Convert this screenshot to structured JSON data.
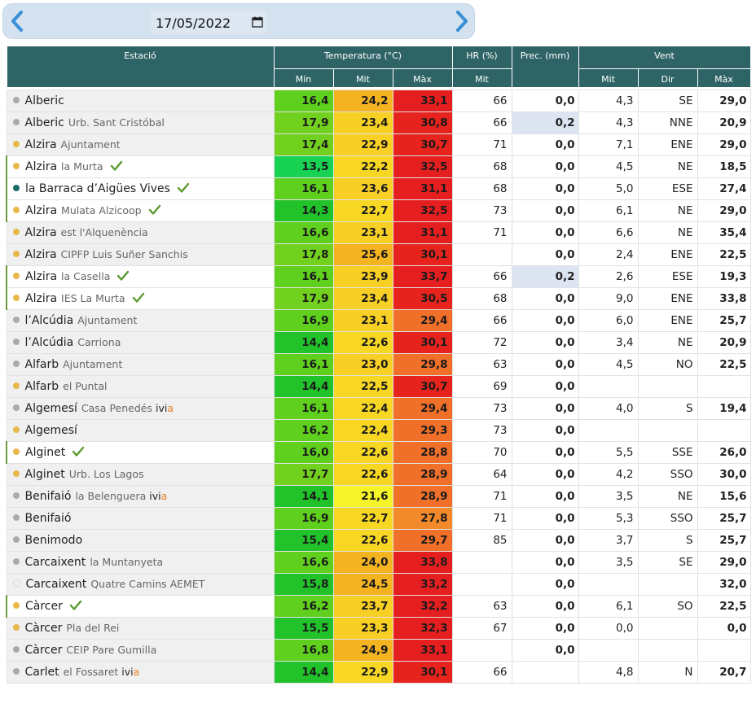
{
  "date_field": {
    "value": "17/05/2022"
  },
  "header": {
    "estacio": "Estació",
    "temperatura": "Temperatura (°C)",
    "hr": "HR (%)",
    "prec": "Prec. (mm)",
    "vent": "Vent",
    "t_min": "Mín",
    "t_mit": "Mit",
    "t_max": "Màx",
    "hr_mit": "Mit",
    "v_mit": "Mit",
    "v_dir": "Dir",
    "v_max": "Màx"
  },
  "colors": {
    "status_grey": "#aaaaaa",
    "status_yellow": "#e8b84a",
    "status_teal": "#1d6b66",
    "check_green": "#5a9a2e",
    "rain_highlight": "#dde5f3"
  },
  "rows": [
    {
      "name": "Alberic",
      "sub": "",
      "dot": "grey",
      "check": false,
      "ivia": false,
      "sel": false,
      "min": "16,4",
      "mit": "24,2",
      "max": "33,1",
      "minc": "#5fd01e",
      "mitc": "#f4b321",
      "maxc": "#e51f1f",
      "hr": "66",
      "prec": "0,0",
      "vmit": "4,3",
      "vdir": "SE",
      "vmax": "29,0"
    },
    {
      "name": "Alberic",
      "sub": "Urb. Sant Cristóbal",
      "dot": "grey",
      "check": false,
      "ivia": false,
      "sel": false,
      "min": "17,9",
      "mit": "23,4",
      "max": "30,8",
      "minc": "#72d11e",
      "mitc": "#f8cf24",
      "maxc": "#e6231d",
      "hr": "66",
      "prec": "0,2",
      "hl": true,
      "vmit": "4,3",
      "vdir": "NNE",
      "vmax": "20,9"
    },
    {
      "name": "Alzira",
      "sub": "Ajuntament",
      "dot": "yellow",
      "check": false,
      "ivia": false,
      "sel": false,
      "min": "17,4",
      "mit": "22,9",
      "max": "30,7",
      "minc": "#72d11e",
      "mitc": "#f8cf24",
      "maxc": "#e6231d",
      "hr": "71",
      "prec": "0,0",
      "vmit": "7,1",
      "vdir": "ENE",
      "vmax": "29,0"
    },
    {
      "name": "Alzira",
      "sub": "la Murta",
      "dot": "yellow",
      "check": true,
      "ivia": false,
      "sel": true,
      "min": "13,5",
      "mit": "22,2",
      "max": "32,5",
      "minc": "#17d253",
      "mitc": "#f8d724",
      "maxc": "#e51f1f",
      "hr": "68",
      "prec": "0,0",
      "vmit": "4,5",
      "vdir": "NE",
      "vmax": "18,5"
    },
    {
      "name": "la Barraca d’Aigües Vives",
      "sub": "",
      "dot": "teal",
      "check": true,
      "ivia": false,
      "sel": true,
      "min": "16,1",
      "mit": "23,6",
      "max": "31,1",
      "minc": "#5fd01e",
      "mitc": "#f8cf24",
      "maxc": "#e51f1f",
      "hr": "68",
      "prec": "0,0",
      "vmit": "5,0",
      "vdir": "ESE",
      "vmax": "27,4"
    },
    {
      "name": "Alzira",
      "sub": "Mulata Alzicoop",
      "dot": "yellow",
      "check": true,
      "ivia": false,
      "sel": true,
      "min": "14,3",
      "mit": "22,7",
      "max": "32,5",
      "minc": "#22c22a",
      "mitc": "#f8d724",
      "maxc": "#e51f1f",
      "hr": "73",
      "prec": "0,0",
      "vmit": "6,1",
      "vdir": "NE",
      "vmax": "29,0"
    },
    {
      "name": "Alzira",
      "sub": "est l'Alquenència",
      "dot": "yellow",
      "check": false,
      "ivia": false,
      "sel": false,
      "min": "16,6",
      "mit": "23,1",
      "max": "31,1",
      "minc": "#5fd01e",
      "mitc": "#f8cf24",
      "maxc": "#e51f1f",
      "hr": "71",
      "prec": "0,0",
      "vmit": "6,6",
      "vdir": "NE",
      "vmax": "35,4"
    },
    {
      "name": "Alzira",
      "sub": "CIPFP Luis Suñer Sanchis",
      "dot": "yellow",
      "check": false,
      "ivia": false,
      "sel": false,
      "min": "17,8",
      "mit": "25,6",
      "max": "30,1",
      "minc": "#72d11e",
      "mitc": "#f4b321",
      "maxc": "#e6231d",
      "hr": "",
      "prec": "0,0",
      "vmit": "2,4",
      "vdir": "ENE",
      "vmax": "22,5"
    },
    {
      "name": "Alzira",
      "sub": "la Casella",
      "dot": "yellow",
      "check": true,
      "ivia": false,
      "sel": true,
      "min": "16,1",
      "mit": "23,9",
      "max": "33,7",
      "minc": "#5fd01e",
      "mitc": "#f8cf24",
      "maxc": "#e51f1f",
      "hr": "66",
      "prec": "0,2",
      "hl": true,
      "vmit": "2,6",
      "vdir": "ESE",
      "vmax": "19,3"
    },
    {
      "name": "Alzira",
      "sub": "IES La Murta",
      "dot": "yellow",
      "check": true,
      "ivia": false,
      "sel": true,
      "min": "17,9",
      "mit": "23,4",
      "max": "30,5",
      "minc": "#72d11e",
      "mitc": "#f8cf24",
      "maxc": "#e6231d",
      "hr": "68",
      "prec": "0,0",
      "vmit": "9,0",
      "vdir": "ENE",
      "vmax": "33,8"
    },
    {
      "name": "l’Alcúdia",
      "sub": "Ajuntament",
      "dot": "grey",
      "check": false,
      "ivia": false,
      "sel": false,
      "min": "16,9",
      "mit": "23,1",
      "max": "29,4",
      "minc": "#5fd01e",
      "mitc": "#f8cf24",
      "maxc": "#f0702a",
      "hr": "66",
      "prec": "0,0",
      "vmit": "6,0",
      "vdir": "ENE",
      "vmax": "25,7"
    },
    {
      "name": "l’Alcúdia",
      "sub": "Carriona",
      "dot": "grey",
      "check": false,
      "ivia": false,
      "sel": false,
      "min": "14,4",
      "mit": "22,6",
      "max": "30,1",
      "minc": "#22c22a",
      "mitc": "#f8d724",
      "maxc": "#e6231d",
      "hr": "72",
      "prec": "0,0",
      "vmit": "3,4",
      "vdir": "NE",
      "vmax": "20,9"
    },
    {
      "name": "Alfarb",
      "sub": "Ajuntament",
      "dot": "grey",
      "check": false,
      "ivia": false,
      "sel": false,
      "min": "16,1",
      "mit": "23,0",
      "max": "29,8",
      "minc": "#5fd01e",
      "mitc": "#f8cf24",
      "maxc": "#f0702a",
      "hr": "63",
      "prec": "0,0",
      "vmit": "4,5",
      "vdir": "NO",
      "vmax": "22,5"
    },
    {
      "name": "Alfarb",
      "sub": "el Puntal",
      "dot": "yellow",
      "check": false,
      "ivia": false,
      "sel": false,
      "min": "14,4",
      "mit": "22,5",
      "max": "30,7",
      "minc": "#22c22a",
      "mitc": "#f8d724",
      "maxc": "#e6231d",
      "hr": "69",
      "prec": "0,0",
      "vmit": "",
      "vdir": "",
      "vmax": ""
    },
    {
      "name": "Algemesí",
      "sub": "Casa Penedés",
      "dot": "grey",
      "check": false,
      "ivia": true,
      "sel": false,
      "min": "16,1",
      "mit": "22,4",
      "max": "29,4",
      "minc": "#5fd01e",
      "mitc": "#f8d724",
      "maxc": "#f0702a",
      "hr": "73",
      "prec": "0,0",
      "vmit": "4,0",
      "vdir": "S",
      "vmax": "19,4"
    },
    {
      "name": "Algemesí",
      "sub": "",
      "dot": "yellow",
      "check": false,
      "ivia": false,
      "sel": false,
      "min": "16,2",
      "mit": "22,4",
      "max": "29,3",
      "minc": "#5fd01e",
      "mitc": "#f8d724",
      "maxc": "#f0702a",
      "hr": "73",
      "prec": "0,0",
      "vmit": "",
      "vdir": "",
      "vmax": ""
    },
    {
      "name": "Alginet",
      "sub": "",
      "dot": "yellow",
      "check": true,
      "ivia": false,
      "sel": true,
      "min": "16,0",
      "mit": "22,6",
      "max": "28,8",
      "minc": "#5fd01e",
      "mitc": "#f8d724",
      "maxc": "#f0702a",
      "hr": "70",
      "prec": "0,0",
      "vmit": "5,5",
      "vdir": "SSE",
      "vmax": "26,0"
    },
    {
      "name": "Alginet",
      "sub": "Urb. Los Lagos",
      "dot": "yellow",
      "check": false,
      "ivia": false,
      "sel": false,
      "min": "17,7",
      "mit": "22,6",
      "max": "28,9",
      "minc": "#72d11e",
      "mitc": "#f8d724",
      "maxc": "#f0702a",
      "hr": "64",
      "prec": "0,0",
      "vmit": "4,2",
      "vdir": "SSO",
      "vmax": "30,0"
    },
    {
      "name": "Benifaió",
      "sub": "la Belenguera",
      "dot": "grey",
      "check": false,
      "ivia": true,
      "sel": false,
      "min": "14,1",
      "mit": "21,6",
      "max": "28,9",
      "minc": "#22c22a",
      "mitc": "#f4f428",
      "maxc": "#f0702a",
      "hr": "71",
      "prec": "0,0",
      "vmit": "3,5",
      "vdir": "NE",
      "vmax": "15,6"
    },
    {
      "name": "Benifaió",
      "sub": "",
      "dot": "grey",
      "check": false,
      "ivia": false,
      "sel": false,
      "min": "16,9",
      "mit": "22,7",
      "max": "27,8",
      "minc": "#5fd01e",
      "mitc": "#f8d724",
      "maxc": "#f28a2c",
      "hr": "71",
      "prec": "0,0",
      "vmit": "5,3",
      "vdir": "SSO",
      "vmax": "25,7"
    },
    {
      "name": "Benimodo",
      "sub": "",
      "dot": "grey",
      "check": false,
      "ivia": false,
      "sel": false,
      "min": "15,4",
      "mit": "22,6",
      "max": "29,7",
      "minc": "#22c22a",
      "mitc": "#f8d724",
      "maxc": "#f0702a",
      "hr": "85",
      "prec": "0,0",
      "vmit": "3,7",
      "vdir": "S",
      "vmax": "25,7"
    },
    {
      "name": "Carcaixent",
      "sub": "la Muntanyeta",
      "dot": "grey",
      "check": false,
      "ivia": false,
      "sel": false,
      "min": "16,6",
      "mit": "24,0",
      "max": "33,8",
      "minc": "#5fd01e",
      "mitc": "#f4b321",
      "maxc": "#e51f1f",
      "hr": "",
      "prec": "0,0",
      "vmit": "3,5",
      "vdir": "SE",
      "vmax": "29,0"
    },
    {
      "name": "Carcaixent",
      "sub": "Quatre Camins AEMET",
      "dot": "hollow",
      "check": false,
      "ivia": false,
      "sel": false,
      "min": "15,8",
      "mit": "24,5",
      "max": "33,2",
      "minc": "#22c22a",
      "mitc": "#f4b321",
      "maxc": "#e51f1f",
      "hr": "",
      "prec": "0,0",
      "vmit": "",
      "vdir": "",
      "vmax": "32,0"
    },
    {
      "name": "Càrcer",
      "sub": "",
      "dot": "yellow",
      "check": true,
      "ivia": false,
      "sel": true,
      "min": "16,2",
      "mit": "23,7",
      "max": "32,2",
      "minc": "#5fd01e",
      "mitc": "#f8cf24",
      "maxc": "#e51f1f",
      "hr": "63",
      "prec": "0,0",
      "vmit": "6,1",
      "vdir": "SO",
      "vmax": "22,5"
    },
    {
      "name": "Càrcer",
      "sub": "Pla del Rei",
      "dot": "yellow",
      "check": false,
      "ivia": false,
      "sel": false,
      "min": "15,5",
      "mit": "23,3",
      "max": "32,3",
      "minc": "#22c22a",
      "mitc": "#f8cf24",
      "maxc": "#e51f1f",
      "hr": "67",
      "prec": "0,0",
      "vmit": "0,0",
      "vdir": "",
      "vmax": "0,0"
    },
    {
      "name": "Càrcer",
      "sub": "CEIP Pare Gumilla",
      "dot": "grey",
      "check": false,
      "ivia": false,
      "sel": false,
      "min": "16,8",
      "mit": "24,9",
      "max": "33,1",
      "minc": "#5fd01e",
      "mitc": "#f4b321",
      "maxc": "#e51f1f",
      "hr": "",
      "prec": "0,0",
      "vmit": "",
      "vdir": "",
      "vmax": ""
    },
    {
      "name": "Carlet",
      "sub": "el Fossaret",
      "dot": "grey",
      "check": false,
      "ivia": true,
      "sel": false,
      "min": "14,4",
      "mit": "22,9",
      "max": "30,1",
      "minc": "#22c22a",
      "mitc": "#f8d724",
      "maxc": "#e6231d",
      "hr": "66",
      "prec": "",
      "vmit": "4,8",
      "vdir": "N",
      "vmax": "20,7"
    }
  ],
  "ivia_label": {
    "main": "ivi",
    "accent": "a"
  }
}
